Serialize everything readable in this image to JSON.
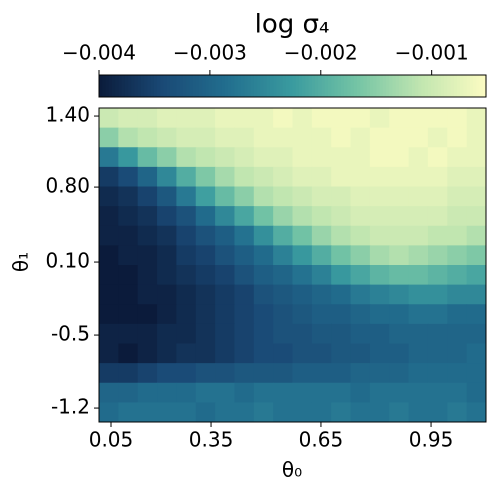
{
  "chart_data": {
    "type": "heatmap",
    "title": "log σ₄",
    "xlabel": "θ₀",
    "ylabel": "θ₁",
    "xlim": [
      0,
      20
    ],
    "ylim": [
      16,
      0
    ],
    "xticks": [
      {
        "value": 0.62,
        "label": "0.05"
      },
      {
        "value": 5.79,
        "label": "0.35"
      },
      {
        "value": 11.47,
        "label": "0.65"
      },
      {
        "value": 17.16,
        "label": "0.95"
      }
    ],
    "yticks": [
      {
        "value": 0.41,
        "label": "1.40"
      },
      {
        "value": 4.03,
        "label": "0.80"
      },
      {
        "value": 7.85,
        "label": "0.10"
      },
      {
        "value": 11.57,
        "label": "-0.5"
      },
      {
        "value": 15.29,
        "label": "-1.2"
      }
    ],
    "values": [
      [
        -0.001,
        -0.0009,
        -0.0009,
        -0.0008,
        -0.0008,
        -0.0008,
        -0.0007,
        -0.0007,
        -0.0007,
        -0.0006,
        -0.0007,
        -0.0006,
        -0.0006,
        -0.0006,
        -0.0007,
        -0.0006,
        -0.0006,
        -0.0006,
        -0.0006,
        -0.0007
      ],
      [
        -0.0015,
        -0.0012,
        -0.0011,
        -0.001,
        -0.0009,
        -0.0009,
        -0.0008,
        -0.0008,
        -0.0007,
        -0.0007,
        -0.0007,
        -0.0007,
        -0.0006,
        -0.0007,
        -0.0006,
        -0.0006,
        -0.0006,
        -0.0007,
        -0.0006,
        -0.0007
      ],
      [
        -0.0027,
        -0.0023,
        -0.0018,
        -0.0015,
        -0.0012,
        -0.0011,
        -0.001,
        -0.0009,
        -0.0008,
        -0.0008,
        -0.0007,
        -0.0007,
        -0.0007,
        -0.0007,
        -0.0006,
        -0.0006,
        -0.0007,
        -0.0006,
        -0.0007,
        -0.0007
      ],
      [
        -0.0036,
        -0.0034,
        -0.003,
        -0.0025,
        -0.002,
        -0.0016,
        -0.0013,
        -0.0011,
        -0.001,
        -0.0009,
        -0.0008,
        -0.0008,
        -0.0007,
        -0.0007,
        -0.0007,
        -0.0007,
        -0.0007,
        -0.0007,
        -0.0008,
        -0.0008
      ],
      [
        -0.0038,
        -0.0037,
        -0.0035,
        -0.0032,
        -0.0027,
        -0.0022,
        -0.0018,
        -0.0015,
        -0.0012,
        -0.0011,
        -0.001,
        -0.0009,
        -0.0009,
        -0.0008,
        -0.0008,
        -0.0008,
        -0.0008,
        -0.0008,
        -0.0009,
        -0.0009
      ],
      [
        -0.0039,
        -0.0038,
        -0.0037,
        -0.0035,
        -0.0033,
        -0.0029,
        -0.0025,
        -0.0021,
        -0.0017,
        -0.0014,
        -0.0012,
        -0.0011,
        -0.001,
        -0.0009,
        -0.0009,
        -0.0009,
        -0.0009,
        -0.0009,
        -0.001,
        -0.001
      ],
      [
        -0.0039,
        -0.0039,
        -0.0038,
        -0.0037,
        -0.0035,
        -0.0033,
        -0.0031,
        -0.0028,
        -0.0024,
        -0.002,
        -0.0017,
        -0.0014,
        -0.0012,
        -0.0011,
        -0.001,
        -0.001,
        -0.001,
        -0.0011,
        -0.0011,
        -0.0012
      ],
      [
        -0.004,
        -0.0039,
        -0.0039,
        -0.0038,
        -0.0036,
        -0.0035,
        -0.0033,
        -0.0031,
        -0.0029,
        -0.0026,
        -0.0023,
        -0.002,
        -0.0017,
        -0.0015,
        -0.0013,
        -0.0012,
        -0.0013,
        -0.0014,
        -0.0015,
        -0.0016
      ],
      [
        -0.004,
        -0.004,
        -0.0039,
        -0.0038,
        -0.0037,
        -0.0036,
        -0.0035,
        -0.0033,
        -0.0031,
        -0.003,
        -0.0028,
        -0.0026,
        -0.0023,
        -0.0021,
        -0.0019,
        -0.0018,
        -0.0018,
        -0.0019,
        -0.002,
        -0.0021
      ],
      [
        -0.004,
        -0.004,
        -0.0039,
        -0.0039,
        -0.0038,
        -0.0037,
        -0.0036,
        -0.0035,
        -0.0033,
        -0.0032,
        -0.0031,
        -0.003,
        -0.0029,
        -0.0027,
        -0.0026,
        -0.0025,
        -0.0024,
        -0.0024,
        -0.0025,
        -0.0025
      ],
      [
        -0.004,
        -0.004,
        -0.004,
        -0.0039,
        -0.0038,
        -0.0037,
        -0.0036,
        -0.0035,
        -0.0034,
        -0.0033,
        -0.0032,
        -0.0031,
        -0.0031,
        -0.003,
        -0.0029,
        -0.0029,
        -0.0028,
        -0.0028,
        -0.0029,
        -0.0029
      ],
      [
        -0.0039,
        -0.0039,
        -0.0039,
        -0.0038,
        -0.0038,
        -0.0037,
        -0.0036,
        -0.0035,
        -0.0034,
        -0.0033,
        -0.0033,
        -0.0032,
        -0.0032,
        -0.0031,
        -0.0031,
        -0.003,
        -0.003,
        -0.003,
        -0.003,
        -0.003
      ],
      [
        -0.0039,
        -0.004,
        -0.0039,
        -0.0038,
        -0.0037,
        -0.0037,
        -0.0036,
        -0.0035,
        -0.0034,
        -0.0034,
        -0.0033,
        -0.0033,
        -0.0032,
        -0.0032,
        -0.0031,
        -0.0031,
        -0.003,
        -0.003,
        -0.003,
        -0.0029
      ],
      [
        -0.0036,
        -0.0036,
        -0.0035,
        -0.0034,
        -0.0034,
        -0.0033,
        -0.0033,
        -0.0032,
        -0.0032,
        -0.0032,
        -0.0031,
        -0.0031,
        -0.0031,
        -0.003,
        -0.003,
        -0.003,
        -0.0029,
        -0.0029,
        -0.0029,
        -0.0029
      ],
      [
        -0.003,
        -0.003,
        -0.0029,
        -0.0029,
        -0.0029,
        -0.0028,
        -0.0028,
        -0.0029,
        -0.0028,
        -0.0028,
        -0.0028,
        -0.0028,
        -0.0028,
        -0.0029,
        -0.0028,
        -0.0028,
        -0.0028,
        -0.0028,
        -0.0028,
        -0.0029
      ],
      [
        -0.0029,
        -0.0028,
        -0.0028,
        -0.0028,
        -0.0028,
        -0.0029,
        -0.0028,
        -0.0028,
        -0.0027,
        -0.0028,
        -0.0028,
        -0.0028,
        -0.0027,
        -0.0028,
        -0.0028,
        -0.0027,
        -0.0028,
        -0.0028,
        -0.0027,
        -0.0028
      ]
    ],
    "colorbar": {
      "lim": [
        -0.004,
        -0.00051
      ],
      "ticks": [
        {
          "value": -0.004,
          "label": "−0.004"
        },
        {
          "value": -0.003,
          "label": "−0.003"
        },
        {
          "value": -0.002,
          "label": "−0.002"
        },
        {
          "value": -0.001,
          "label": "−0.001"
        }
      ],
      "colors": [
        "#0b1b3b",
        "#1a4a76",
        "#226f8f",
        "#3a9b9f",
        "#74c4a5",
        "#c2e6b0",
        "#fcfcc2"
      ]
    }
  }
}
